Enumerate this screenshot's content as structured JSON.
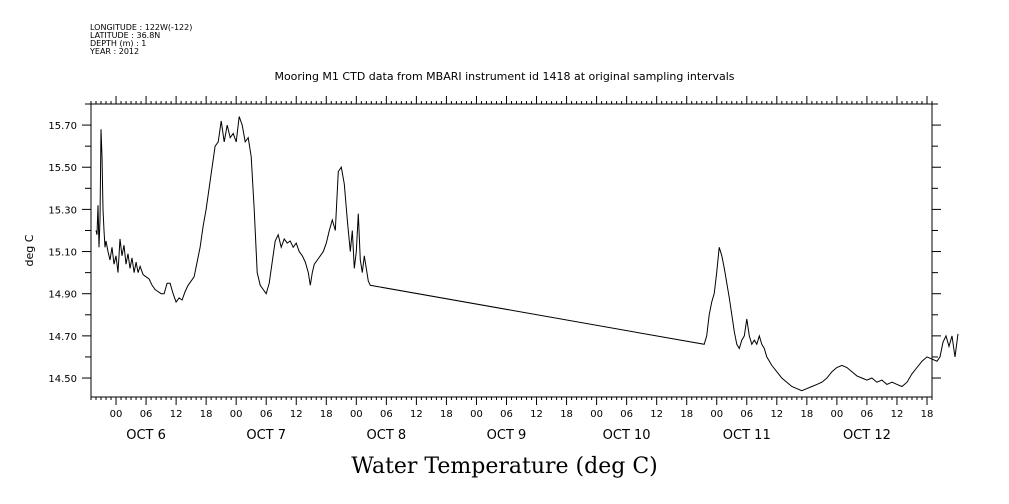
{
  "header": {
    "longitude": "LONGITUDE : 122W(-122)",
    "latitude": "LATITUDE : 36.8N",
    "depth": "DEPTH (m) : 1",
    "year": "YEAR : 2012"
  },
  "footer_title": "Water Temperature (deg C)",
  "chart_data": {
    "type": "line",
    "title": "Mooring M1 CTD data from MBARI instrument id 1418 at original sampling intervals",
    "xlabel": "",
    "ylabel": "deg C",
    "x_unit": "hours",
    "xlim": [
      -5,
      163
    ],
    "ylim": [
      14.41,
      15.8
    ],
    "yticks": [
      14.5,
      14.7,
      14.9,
      15.1,
      15.3,
      15.5,
      15.7
    ],
    "ytick_labels": [
      "14.50",
      "14.70",
      "14.90",
      "15.10",
      "15.30",
      "15.50",
      "15.70"
    ],
    "hour_ticks": [
      0,
      6,
      12,
      18,
      24,
      30,
      36,
      42,
      48,
      54,
      60,
      66,
      72,
      78,
      84,
      90,
      96,
      102,
      108,
      114,
      120,
      126,
      132,
      138,
      144,
      150,
      156,
      162
    ],
    "hour_tick_labels": [
      "00",
      "06",
      "12",
      "18",
      "00",
      "06",
      "12",
      "18",
      "00",
      "06",
      "12",
      "18",
      "00",
      "06",
      "12",
      "18",
      "00",
      "06",
      "12",
      "18",
      "00",
      "06",
      "12",
      "18",
      "00",
      "06",
      "12",
      "18"
    ],
    "day_labels": [
      {
        "label": "OCT  6",
        "center": 6
      },
      {
        "label": "OCT  7",
        "center": 30
      },
      {
        "label": "OCT  8",
        "center": 54
      },
      {
        "label": "OCT  9",
        "center": 78
      },
      {
        "label": "OCT 10",
        "center": 102
      },
      {
        "label": "OCT 11",
        "center": 126
      },
      {
        "label": "OCT 12",
        "center": 150
      }
    ],
    "series": [
      {
        "points": [
          [
            -4.0,
            15.2
          ],
          [
            -3.8,
            15.18
          ],
          [
            -3.6,
            15.32
          ],
          [
            -3.4,
            15.12
          ],
          [
            -3.2,
            15.25
          ],
          [
            -3.0,
            15.68
          ],
          [
            -2.8,
            15.55
          ],
          [
            -2.6,
            15.3
          ],
          [
            -2.4,
            15.2
          ],
          [
            -2.2,
            15.12
          ],
          [
            -2.0,
            15.15
          ],
          [
            -1.6,
            15.1
          ],
          [
            -1.2,
            15.06
          ],
          [
            -0.8,
            15.12
          ],
          [
            -0.4,
            15.04
          ],
          [
            0.0,
            15.08
          ],
          [
            0.4,
            15.0
          ],
          [
            0.8,
            15.16
          ],
          [
            1.2,
            15.08
          ],
          [
            1.6,
            15.13
          ],
          [
            2.0,
            15.04
          ],
          [
            2.4,
            15.09
          ],
          [
            2.8,
            15.02
          ],
          [
            3.2,
            15.07
          ],
          [
            3.6,
            15.0
          ],
          [
            4.0,
            15.05
          ],
          [
            4.4,
            15.0
          ],
          [
            4.8,
            15.03
          ],
          [
            5.4,
            14.99
          ],
          [
            6.0,
            14.98
          ],
          [
            6.6,
            14.97
          ],
          [
            7.2,
            14.94
          ],
          [
            7.8,
            14.92
          ],
          [
            8.4,
            14.91
          ],
          [
            9.0,
            14.9
          ],
          [
            9.6,
            14.9
          ],
          [
            10.2,
            14.95
          ],
          [
            10.8,
            14.95
          ],
          [
            11.4,
            14.9
          ],
          [
            12.0,
            14.86
          ],
          [
            12.6,
            14.88
          ],
          [
            13.2,
            14.87
          ],
          [
            13.8,
            14.91
          ],
          [
            14.4,
            14.94
          ],
          [
            15.0,
            14.96
          ],
          [
            15.6,
            14.98
          ],
          [
            16.2,
            15.05
          ],
          [
            16.8,
            15.12
          ],
          [
            17.4,
            15.22
          ],
          [
            18.0,
            15.3
          ],
          [
            18.6,
            15.4
          ],
          [
            19.2,
            15.5
          ],
          [
            19.8,
            15.6
          ],
          [
            20.4,
            15.62
          ],
          [
            21.0,
            15.72
          ],
          [
            21.6,
            15.62
          ],
          [
            22.2,
            15.7
          ],
          [
            22.8,
            15.64
          ],
          [
            23.4,
            15.66
          ],
          [
            24.0,
            15.62
          ],
          [
            24.6,
            15.74
          ],
          [
            25.2,
            15.7
          ],
          [
            25.8,
            15.62
          ],
          [
            26.4,
            15.64
          ],
          [
            27.0,
            15.55
          ],
          [
            27.6,
            15.3
          ],
          [
            28.2,
            15.0
          ],
          [
            28.8,
            14.94
          ],
          [
            29.4,
            14.92
          ],
          [
            30.0,
            14.9
          ],
          [
            30.6,
            14.95
          ],
          [
            31.2,
            15.05
          ],
          [
            31.8,
            15.15
          ],
          [
            32.4,
            15.18
          ],
          [
            33.0,
            15.12
          ],
          [
            33.6,
            15.16
          ],
          [
            34.2,
            15.14
          ],
          [
            34.8,
            15.15
          ],
          [
            35.4,
            15.12
          ],
          [
            36.0,
            15.14
          ],
          [
            36.6,
            15.1
          ],
          [
            37.2,
            15.08
          ],
          [
            37.8,
            15.05
          ],
          [
            38.4,
            15.0
          ],
          [
            38.8,
            14.94
          ],
          [
            39.2,
            15.0
          ],
          [
            39.6,
            15.04
          ],
          [
            40.2,
            15.06
          ],
          [
            40.8,
            15.08
          ],
          [
            41.4,
            15.1
          ],
          [
            42.0,
            15.14
          ],
          [
            42.6,
            15.2
          ],
          [
            43.2,
            15.25
          ],
          [
            43.8,
            15.2
          ],
          [
            44.4,
            15.48
          ],
          [
            45.0,
            15.5
          ],
          [
            45.6,
            15.42
          ],
          [
            46.2,
            15.25
          ],
          [
            46.8,
            15.1
          ],
          [
            47.2,
            15.2
          ],
          [
            47.6,
            15.02
          ],
          [
            48.0,
            15.1
          ],
          [
            48.4,
            15.28
          ],
          [
            48.8,
            15.06
          ],
          [
            49.2,
            15.0
          ],
          [
            49.6,
            15.08
          ],
          [
            50.0,
            15.02
          ],
          [
            50.4,
            14.96
          ],
          [
            50.8,
            14.94
          ],
          [
            117.5,
            14.66
          ],
          [
            118.0,
            14.7
          ],
          [
            118.5,
            14.8
          ],
          [
            119.0,
            14.86
          ],
          [
            119.5,
            14.9
          ],
          [
            120.0,
            15.0
          ],
          [
            120.5,
            15.12
          ],
          [
            121.0,
            15.08
          ],
          [
            121.5,
            15.02
          ],
          [
            122.0,
            14.95
          ],
          [
            122.5,
            14.88
          ],
          [
            123.0,
            14.8
          ],
          [
            123.5,
            14.72
          ],
          [
            124.0,
            14.66
          ],
          [
            124.5,
            14.64
          ],
          [
            125.0,
            14.68
          ],
          [
            125.5,
            14.7
          ],
          [
            126.0,
            14.78
          ],
          [
            126.5,
            14.7
          ],
          [
            127.0,
            14.66
          ],
          [
            127.5,
            14.68
          ],
          [
            128.0,
            14.66
          ],
          [
            128.5,
            14.7
          ],
          [
            129.0,
            14.66
          ],
          [
            129.5,
            14.64
          ],
          [
            130.0,
            14.6
          ],
          [
            131.0,
            14.56
          ],
          [
            132.0,
            14.53
          ],
          [
            133.0,
            14.5
          ],
          [
            134.0,
            14.48
          ],
          [
            135.0,
            14.46
          ],
          [
            136.0,
            14.45
          ],
          [
            137.0,
            14.44
          ],
          [
            138.0,
            14.45
          ],
          [
            139.0,
            14.46
          ],
          [
            140.0,
            14.47
          ],
          [
            141.0,
            14.48
          ],
          [
            142.0,
            14.5
          ],
          [
            143.0,
            14.53
          ],
          [
            144.0,
            14.55
          ],
          [
            145.0,
            14.56
          ],
          [
            146.0,
            14.55
          ],
          [
            147.0,
            14.53
          ],
          [
            148.0,
            14.51
          ],
          [
            149.0,
            14.5
          ],
          [
            150.0,
            14.49
          ],
          [
            151.0,
            14.5
          ],
          [
            152.0,
            14.48
          ],
          [
            153.0,
            14.49
          ],
          [
            154.0,
            14.47
          ],
          [
            155.0,
            14.48
          ],
          [
            156.0,
            14.47
          ],
          [
            157.0,
            14.46
          ],
          [
            158.0,
            14.48
          ],
          [
            159.0,
            14.52
          ],
          [
            160.0,
            14.55
          ],
          [
            161.0,
            14.58
          ],
          [
            162.0,
            14.6
          ],
          [
            163.0,
            14.59
          ],
          [
            164.0,
            14.58
          ],
          [
            164.6,
            14.6
          ],
          [
            165.2,
            14.67
          ],
          [
            165.8,
            14.7
          ],
          [
            166.4,
            14.65
          ],
          [
            167.0,
            14.7
          ],
          [
            167.6,
            14.6
          ],
          [
            168.2,
            14.71
          ]
        ]
      }
    ]
  }
}
